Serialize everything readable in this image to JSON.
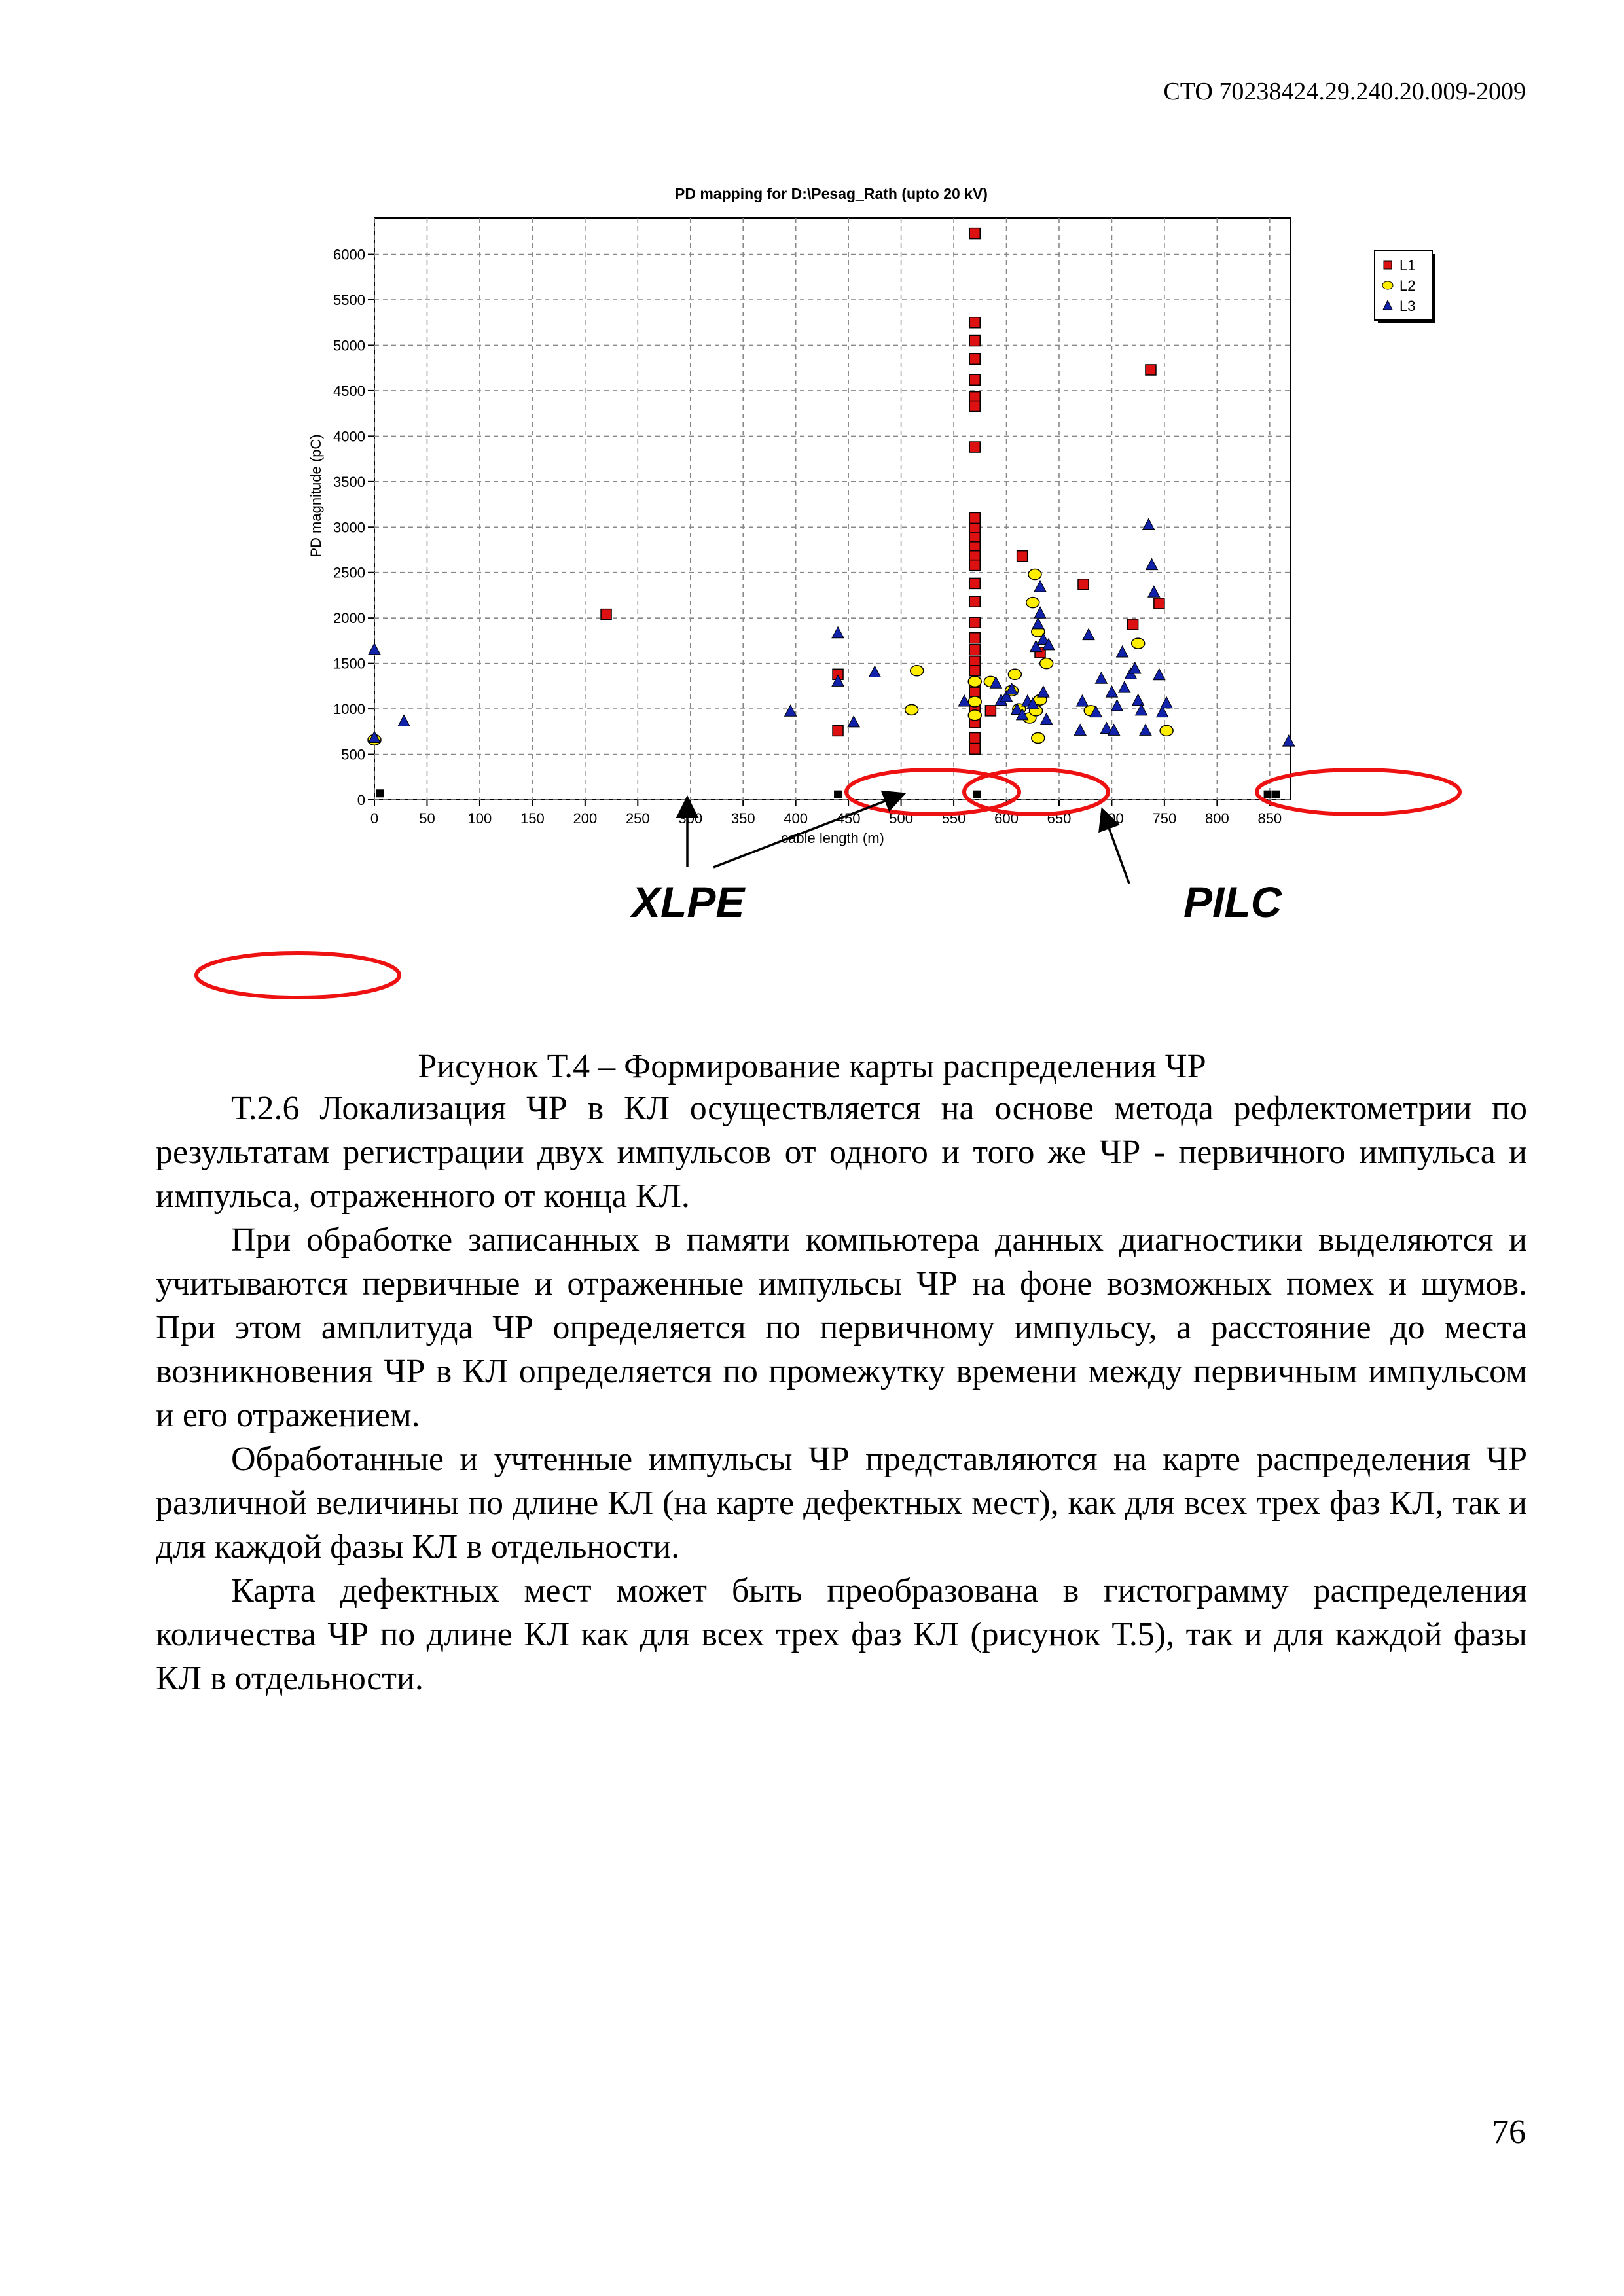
{
  "header": {
    "doc_code": "СТО 70238424.29.240.20.009-2009"
  },
  "chart_data": {
    "type": "scatter",
    "title": "PD mapping for D:\\Pesag_Rath (upto 20 kV)",
    "xlabel": "cable length (m)",
    "ylabel": "PD magnitude (pC)",
    "xlim": [
      0,
      870
    ],
    "ylim": [
      0,
      6400
    ],
    "x_ticks": [
      0,
      50,
      100,
      150,
      200,
      250,
      300,
      350,
      400,
      450,
      500,
      550,
      600,
      650,
      700,
      750,
      800,
      850
    ],
    "y_ticks": [
      0,
      500,
      1000,
      1500,
      2000,
      2500,
      3000,
      3500,
      4000,
      4500,
      5000,
      5500,
      6000
    ],
    "grid": true,
    "legend_position": "top-right, outside plot",
    "series": [
      {
        "name": "L1",
        "marker": "square",
        "color": "#dd1111",
        "points": [
          [
            220,
            2040
          ],
          [
            440,
            1380
          ],
          [
            440,
            760
          ],
          [
            570,
            6230
          ],
          [
            570,
            5250
          ],
          [
            570,
            5050
          ],
          [
            570,
            4850
          ],
          [
            570,
            4620
          ],
          [
            570,
            4430
          ],
          [
            570,
            4330
          ],
          [
            570,
            3880
          ],
          [
            570,
            3100
          ],
          [
            570,
            2980
          ],
          [
            570,
            2880
          ],
          [
            570,
            2780
          ],
          [
            570,
            2680
          ],
          [
            570,
            2580
          ],
          [
            570,
            2380
          ],
          [
            570,
            2180
          ],
          [
            570,
            1950
          ],
          [
            570,
            1780
          ],
          [
            570,
            1650
          ],
          [
            570,
            1520
          ],
          [
            570,
            1420
          ],
          [
            570,
            1280
          ],
          [
            570,
            1180
          ],
          [
            570,
            1080
          ],
          [
            570,
            980
          ],
          [
            570,
            850
          ],
          [
            570,
            680
          ],
          [
            570,
            560
          ],
          [
            585,
            980
          ],
          [
            615,
            2680
          ],
          [
            632,
            1620
          ],
          [
            673,
            2370
          ],
          [
            720,
            1930
          ],
          [
            737,
            4730
          ],
          [
            745,
            2160
          ]
        ]
      },
      {
        "name": "L2",
        "marker": "circle",
        "color": "#ffee00",
        "points": [
          [
            0,
            660
          ],
          [
            510,
            990
          ],
          [
            515,
            1420
          ],
          [
            570,
            1300
          ],
          [
            570,
            1080
          ],
          [
            570,
            930
          ],
          [
            585,
            1300
          ],
          [
            605,
            1200
          ],
          [
            608,
            1380
          ],
          [
            612,
            1000
          ],
          [
            622,
            900
          ],
          [
            625,
            2170
          ],
          [
            627,
            2480
          ],
          [
            628,
            980
          ],
          [
            630,
            1850
          ],
          [
            630,
            680
          ],
          [
            632,
            1100
          ],
          [
            638,
            1500
          ],
          [
            680,
            980
          ],
          [
            725,
            1720
          ],
          [
            752,
            760
          ]
        ]
      },
      {
        "name": "L3",
        "marker": "triangle",
        "color": "#1122aa",
        "points": [
          [
            0,
            1650
          ],
          [
            0,
            680
          ],
          [
            28,
            860
          ],
          [
            395,
            970
          ],
          [
            440,
            1830
          ],
          [
            440,
            1300
          ],
          [
            455,
            850
          ],
          [
            475,
            1400
          ],
          [
            560,
            1080
          ],
          [
            590,
            1280
          ],
          [
            595,
            1090
          ],
          [
            600,
            1130
          ],
          [
            605,
            1210
          ],
          [
            610,
            990
          ],
          [
            615,
            930
          ],
          [
            620,
            1080
          ],
          [
            625,
            1050
          ],
          [
            628,
            1680
          ],
          [
            630,
            1930
          ],
          [
            632,
            2340
          ],
          [
            632,
            2050
          ],
          [
            635,
            1760
          ],
          [
            635,
            1180
          ],
          [
            638,
            880
          ],
          [
            640,
            1700
          ],
          [
            670,
            760
          ],
          [
            672,
            1080
          ],
          [
            678,
            1810
          ],
          [
            685,
            960
          ],
          [
            690,
            1330
          ],
          [
            695,
            780
          ],
          [
            700,
            1180
          ],
          [
            702,
            760
          ],
          [
            705,
            1030
          ],
          [
            710,
            1620
          ],
          [
            712,
            1230
          ],
          [
            718,
            1380
          ],
          [
            722,
            1440
          ],
          [
            725,
            1090
          ],
          [
            728,
            980
          ],
          [
            732,
            760
          ],
          [
            735,
            3020
          ],
          [
            738,
            2580
          ],
          [
            740,
            2280
          ],
          [
            745,
            1370
          ],
          [
            748,
            960
          ],
          [
            752,
            1060
          ],
          [
            868,
            640
          ]
        ]
      }
    ],
    "baseline_markers": [
      [
        5,
        70
      ],
      [
        440,
        60
      ],
      [
        572,
        60
      ],
      [
        848,
        60
      ],
      [
        856,
        60
      ]
    ],
    "annotations": [
      {
        "text": "XLPE",
        "color": "#000000"
      },
      {
        "text": "PILC",
        "color": "#000000"
      }
    ],
    "highlight_color": "#ee1111"
  },
  "figure": {
    "caption": "Рисунок Т.4 – Формирование карты распределения ЧР"
  },
  "body": {
    "paragraphs": [
      "Т.2.6 Локализация ЧР в КЛ осуществляется на основе метода рефлектометрии по результатам регистрации двух импульсов от одного и того же ЧР - первичного импульса и импульса, отраженного от конца КЛ.",
      "При обработке записанных в памяти компьютера данных диагностики выделяются и учитываются первичные и отраженные импульсы ЧР на фоне возможных помех и шумов. При этом амплитуда ЧР определяется по первичному импульсу, а расстояние до места возникновения ЧР в КЛ определяется по промежутку времени между первичным импульсом и его отражением.",
      "Обработанные и учтенные импульсы ЧР представляются на карте распределения ЧР различной величины по длине КЛ (на карте дефектных мест), как для всех трех фаз КЛ, так и для каждой фазы КЛ в отдельности.",
      "Карта дефектных мест может быть преобразована в гистограмму распределения количества ЧР по длине КЛ как для всех трех фаз КЛ (рисунок Т.5), так и для каждой фазы КЛ в отдельности."
    ]
  },
  "footer": {
    "page_number": "76"
  }
}
